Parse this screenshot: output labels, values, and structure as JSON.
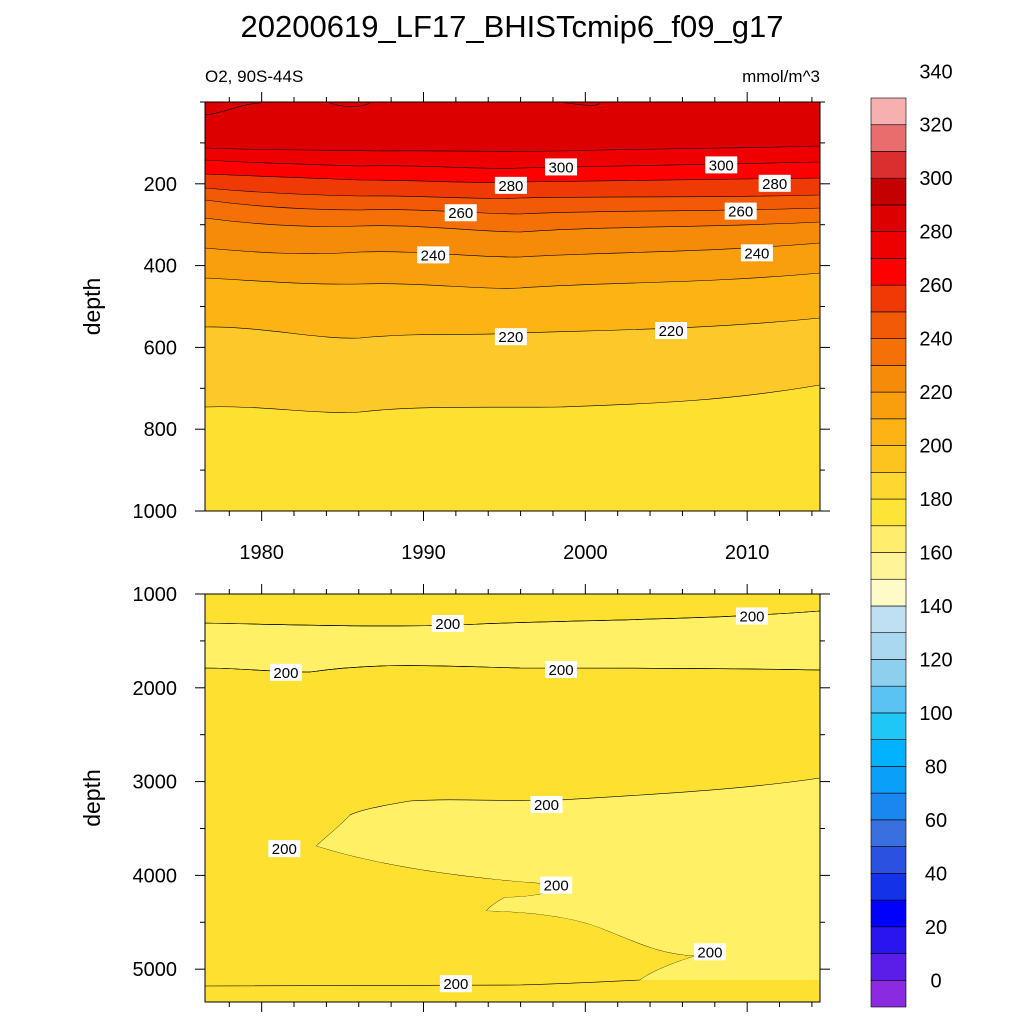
{
  "title": "20200619_LF17_BHISTcmip6_f09_g17",
  "variable_label": "O2, 90S-44S",
  "units_label": "mmol/m^3",
  "colors": {
    "levels": [
      "#8a2be2",
      "#5a1ee8",
      "#2a14ef",
      "#0000ff",
      "#1432e8",
      "#2a52e0",
      "#3a6fe0",
      "#1a87f0",
      "#0a9ff8",
      "#00b2ff",
      "#1ec7f5",
      "#5ac3f2",
      "#8ecfee",
      "#a9d8f0",
      "#bfe0f2",
      "#fffbc8",
      "#fff498",
      "#ffed6e",
      "#ffe438",
      "#fed830",
      "#fdc41f",
      "#fbb414",
      "#f99e0c",
      "#f68a09",
      "#f57006",
      "#f35a06",
      "#f03a05",
      "#ff0000",
      "#ee0000",
      "#dd0000",
      "#c50000",
      "#d92f2f",
      "#ea6d6d",
      "#f7b0b0"
    ],
    "ramp": {
      "200-220": "#fde030",
      "180-200": "#fff066",
      "220-230": "#fdc82a",
      "top": "#dd0000"
    }
  },
  "chart_data": [
    {
      "type": "contour",
      "panel": "upper",
      "ylabel": "depth",
      "xlim": [
        1976.5,
        2014.5
      ],
      "ylim": [
        1000,
        0
      ],
      "xticks": [
        1980,
        1990,
        2000,
        2010
      ],
      "yticks": [
        200,
        400,
        600,
        800,
        1000
      ],
      "contour_labels": [
        {
          "x": 1998.5,
          "y": 160,
          "text": "300"
        },
        {
          "x": 2008.4,
          "y": 155,
          "text": "300"
        },
        {
          "x": 1995.4,
          "y": 205,
          "text": "280"
        },
        {
          "x": 2011.7,
          "y": 200,
          "text": "280"
        },
        {
          "x": 1992.3,
          "y": 272,
          "text": "260"
        },
        {
          "x": 2009.6,
          "y": 268,
          "text": "260"
        },
        {
          "x": 1990.6,
          "y": 375,
          "text": "240"
        },
        {
          "x": 2010.6,
          "y": 370,
          "text": "240"
        },
        {
          "x": 1995.4,
          "y": 575,
          "text": "220"
        },
        {
          "x": 2005.3,
          "y": 560,
          "text": "220"
        }
      ]
    },
    {
      "type": "contour",
      "panel": "lower",
      "ylabel": "depth",
      "xlim": [
        1976.5,
        2014.5
      ],
      "ylim": [
        5350,
        1000
      ],
      "yticks": [
        1000,
        2000,
        3000,
        4000,
        5000
      ],
      "contour_labels": [
        {
          "x": 1991.5,
          "y": 1320,
          "text": "200"
        },
        {
          "x": 2010.3,
          "y": 1240,
          "text": "200"
        },
        {
          "x": 1981.5,
          "y": 1840,
          "text": "200"
        },
        {
          "x": 1998.5,
          "y": 1810,
          "text": "200"
        },
        {
          "x": 1997.6,
          "y": 3250,
          "text": "200"
        },
        {
          "x": 1981.4,
          "y": 3720,
          "text": "200"
        },
        {
          "x": 1998.2,
          "y": 4110,
          "text": "200"
        },
        {
          "x": 2007.7,
          "y": 4820,
          "text": "200"
        },
        {
          "x": 1992.0,
          "y": 5160,
          "text": "200"
        }
      ]
    }
  ],
  "colorbar": {
    "tick_labels": [
      "0",
      "20",
      "40",
      "60",
      "80",
      "100",
      "120",
      "140",
      "160",
      "180",
      "200",
      "220",
      "240",
      "260",
      "280",
      "300",
      "320",
      "340"
    ]
  }
}
